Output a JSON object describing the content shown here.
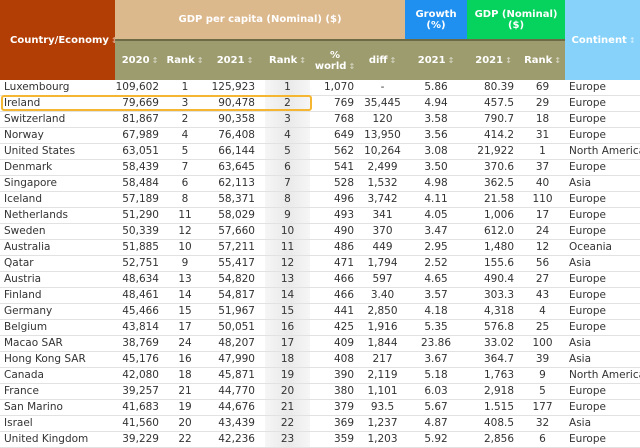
{
  "header": {
    "country": "Country/Economy",
    "gdp_per_capita": "GDP per capita (Nominal) ($)",
    "growth": "Growth (%)",
    "gdp": "GDP (Nominal) ($)",
    "continent": "Continent",
    "sub": {
      "y2020": "2020",
      "rank2020": "Rank",
      "y2021": "2021",
      "rank2021": "Rank",
      "pct_world": "% world",
      "diff": "diff",
      "growth2021": "2021",
      "gdp2021": "2021",
      "gdp_rank": "Rank"
    },
    "sort_icon": "↕"
  },
  "colors": {
    "country_header": "#b33e05",
    "gdp_per_capita_header": "#dcb88d",
    "subheader": "#9d9c6e",
    "growth_header": "#1f8ff0",
    "gdp_header": "#06d35d",
    "continent_header": "#86d2fb",
    "highlight": "#f5b731"
  },
  "highlighted_row": "Ireland",
  "rows": [
    [
      "Luxembourg",
      "109,602",
      "1",
      "125,923",
      "1",
      "1,070",
      "-",
      "5.86",
      "80.39",
      "69",
      "Europe"
    ],
    [
      "Ireland",
      "79,669",
      "3",
      "90,478",
      "2",
      "769",
      "35,445",
      "4.94",
      "457.5",
      "29",
      "Europe"
    ],
    [
      "Switzerland",
      "81,867",
      "2",
      "90,358",
      "3",
      "768",
      "120",
      "3.58",
      "790.7",
      "18",
      "Europe"
    ],
    [
      "Norway",
      "67,989",
      "4",
      "76,408",
      "4",
      "649",
      "13,950",
      "3.56",
      "414.2",
      "31",
      "Europe"
    ],
    [
      "United States",
      "63,051",
      "5",
      "66,144",
      "5",
      "562",
      "10,264",
      "3.08",
      "21,922",
      "1",
      "North America"
    ],
    [
      "Denmark",
      "58,439",
      "7",
      "63,645",
      "6",
      "541",
      "2,499",
      "3.50",
      "370.6",
      "37",
      "Europe"
    ],
    [
      "Singapore",
      "58,484",
      "6",
      "62,113",
      "7",
      "528",
      "1,532",
      "4.98",
      "362.5",
      "40",
      "Asia"
    ],
    [
      "Iceland",
      "57,189",
      "8",
      "58,371",
      "8",
      "496",
      "3,742",
      "4.11",
      "21.58",
      "110",
      "Europe"
    ],
    [
      "Netherlands",
      "51,290",
      "11",
      "58,029",
      "9",
      "493",
      "341",
      "4.05",
      "1,006",
      "17",
      "Europe"
    ],
    [
      "Sweden",
      "50,339",
      "12",
      "57,660",
      "10",
      "490",
      "370",
      "3.47",
      "612.0",
      "24",
      "Europe"
    ],
    [
      "Australia",
      "51,885",
      "10",
      "57,211",
      "11",
      "486",
      "449",
      "2.95",
      "1,480",
      "12",
      "Oceania"
    ],
    [
      "Qatar",
      "52,751",
      "9",
      "55,417",
      "12",
      "471",
      "1,794",
      "2.52",
      "155.6",
      "56",
      "Asia"
    ],
    [
      "Austria",
      "48,634",
      "13",
      "54,820",
      "13",
      "466",
      "597",
      "4.65",
      "490.4",
      "27",
      "Europe"
    ],
    [
      "Finland",
      "48,461",
      "14",
      "54,817",
      "14",
      "466",
      "3.40",
      "3.57",
      "303.3",
      "43",
      "Europe"
    ],
    [
      "Germany",
      "45,466",
      "15",
      "51,967",
      "15",
      "441",
      "2,850",
      "4.18",
      "4,318",
      "4",
      "Europe"
    ],
    [
      "Belgium",
      "43,814",
      "17",
      "50,051",
      "16",
      "425",
      "1,916",
      "5.35",
      "576.8",
      "25",
      "Europe"
    ],
    [
      "Macao SAR",
      "38,769",
      "24",
      "48,207",
      "17",
      "409",
      "1,844",
      "23.86",
      "33.02",
      "100",
      "Asia"
    ],
    [
      "Hong Kong SAR",
      "45,176",
      "16",
      "47,990",
      "18",
      "408",
      "217",
      "3.67",
      "364.7",
      "39",
      "Asia"
    ],
    [
      "Canada",
      "42,080",
      "18",
      "45,871",
      "19",
      "390",
      "2,119",
      "5.18",
      "1,763",
      "9",
      "North America"
    ],
    [
      "France",
      "39,257",
      "21",
      "44,770",
      "20",
      "380",
      "1,101",
      "6.03",
      "2,918",
      "5",
      "Europe"
    ],
    [
      "San Marino",
      "41,683",
      "19",
      "44,676",
      "21",
      "379",
      "93.5",
      "5.67",
      "1.515",
      "177",
      "Europe"
    ],
    [
      "Israel",
      "41,560",
      "20",
      "43,439",
      "22",
      "369",
      "1,237",
      "4.87",
      "408.5",
      "32",
      "Asia"
    ],
    [
      "United Kingdom",
      "39,229",
      "22",
      "42,236",
      "23",
      "359",
      "1,203",
      "5.92",
      "2,856",
      "6",
      "Europe"
    ]
  ]
}
